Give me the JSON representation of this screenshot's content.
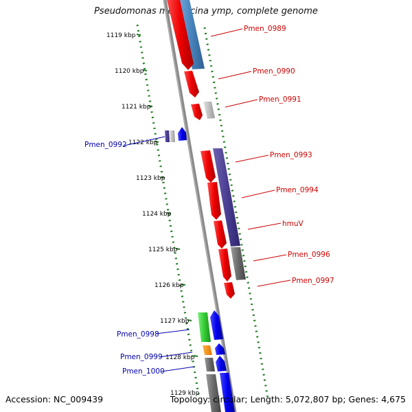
{
  "header": {
    "title": "Pseudomonas mendocina ymp, complete genome"
  },
  "footer": {
    "accession": "Accession: NC_009439",
    "summary": "Topology: circular; Length: 5,072,807 bp; Genes: 4,675"
  },
  "colors": {
    "plus_strand_label": "#cc0000",
    "minus_strand_label": "#0000aa",
    "backbone": "#8a8a8a",
    "tick": "#1f7a1f"
  },
  "chart_data": {
    "type": "genome_map",
    "ticks": [
      "1119 kbp",
      "1120 kbp",
      "1121 kbp",
      "1122 kbp",
      "1123 kbp",
      "1124 kbp",
      "1125 kbp",
      "1126 kbp",
      "1127 kbp",
      "1128 kbp",
      "1129 kbp"
    ],
    "genes": [
      {
        "label": "Pmen_0989",
        "strand": "+"
      },
      {
        "label": "Pmen_0990",
        "strand": "+"
      },
      {
        "label": "Pmen_0991",
        "strand": "+"
      },
      {
        "label": "Pmen_0992",
        "strand": "-"
      },
      {
        "label": "Pmen_0993",
        "strand": "+"
      },
      {
        "label": "Pmen_0994",
        "strand": "+"
      },
      {
        "label": "hmuV",
        "strand": "+"
      },
      {
        "label": "Pmen_0996",
        "strand": "+"
      },
      {
        "label": "Pmen_0997",
        "strand": "+"
      },
      {
        "label": "Pmen_0998",
        "strand": "-"
      },
      {
        "label": "Pmen_0999",
        "strand": "-"
      },
      {
        "label": "Pmen_1000",
        "strand": "-"
      }
    ]
  }
}
